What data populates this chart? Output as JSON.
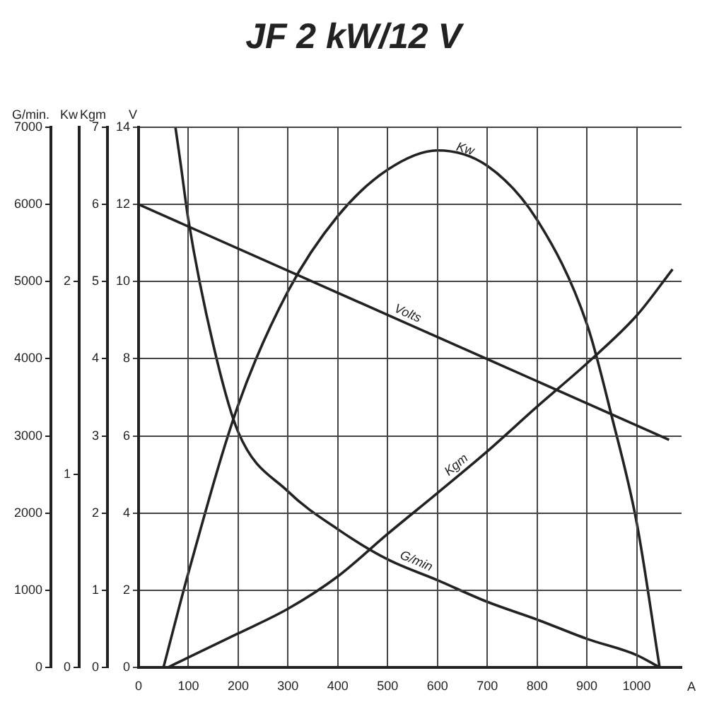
{
  "chart_data": [
    {
      "type": "line",
      "ylabel": "G/min.",
      "y2label": "Kw",
      "tick_labels": "y",
      "xlim": [
        0,
        1090
      ],
      "ylim": [
        0,
        7000
      ],
      "yticks": [
        0,
        1000,
        2000,
        3000,
        4000,
        5000,
        6000,
        7000
      ],
      "y2lim": [
        0,
        2.8
      ],
      "y2ticks": [
        0,
        1,
        2
      ],
      "legend": false,
      "marker": "none",
      "line_style": "solid",
      "series": [
        {
          "name": "Kw",
          "color": "#222222",
          "axis": "y2",
          "x": [
            50,
            100,
            200,
            300,
            400,
            500,
            600,
            700,
            800,
            900,
            950,
            1000,
            1046
          ],
          "values": [
            0,
            0.49,
            1.36,
            1.95,
            2.34,
            2.58,
            2.68,
            2.6,
            2.32,
            1.78,
            1.3,
            0.75,
            0
          ]
        },
        {
          "name": "G/min",
          "color": "#222222",
          "x": [
            74,
            85,
            100,
            150,
            200,
            300,
            400,
            500,
            600,
            700,
            800,
            900,
            1000,
            1046
          ],
          "values": [
            7000,
            6500,
            5800,
            4180,
            3050,
            2280,
            1790,
            1400,
            1130,
            850,
            620,
            370,
            160,
            0
          ]
        }
      ]
    },
    {
      "type": "line",
      "title": "JF 2 kW/12 V",
      "xlabel": "A",
      "ylabel": "V",
      "y2label": "Kgm",
      "xlim": [
        0,
        1090
      ],
      "xticks": [
        0,
        100,
        200,
        300,
        400,
        500,
        600,
        700,
        800,
        900,
        1000
      ],
      "ylim": [
        0,
        14
      ],
      "yticks": [
        0,
        2,
        4,
        6,
        8,
        10,
        12,
        14
      ],
      "y2lim": [
        0,
        7
      ],
      "y2ticks": [
        0,
        1,
        2,
        3,
        4,
        5,
        6,
        7
      ],
      "grid": true,
      "legend": false,
      "marker": "none",
      "line_style": "solid",
      "series": [
        {
          "name": "Volts",
          "color": "#222222",
          "x": [
            0,
            1065
          ],
          "values": [
            12,
            5.9
          ]
        },
        {
          "name": "Kgm",
          "color": "#222222",
          "axis": "y2",
          "x": [
            59,
            100,
            200,
            300,
            400,
            500,
            600,
            700,
            800,
            900,
            1000,
            1072
          ],
          "values": [
            0,
            0.13,
            0.44,
            0.76,
            1.18,
            1.73,
            2.26,
            2.8,
            3.38,
            3.94,
            4.56,
            5.16
          ]
        }
      ]
    }
  ]
}
